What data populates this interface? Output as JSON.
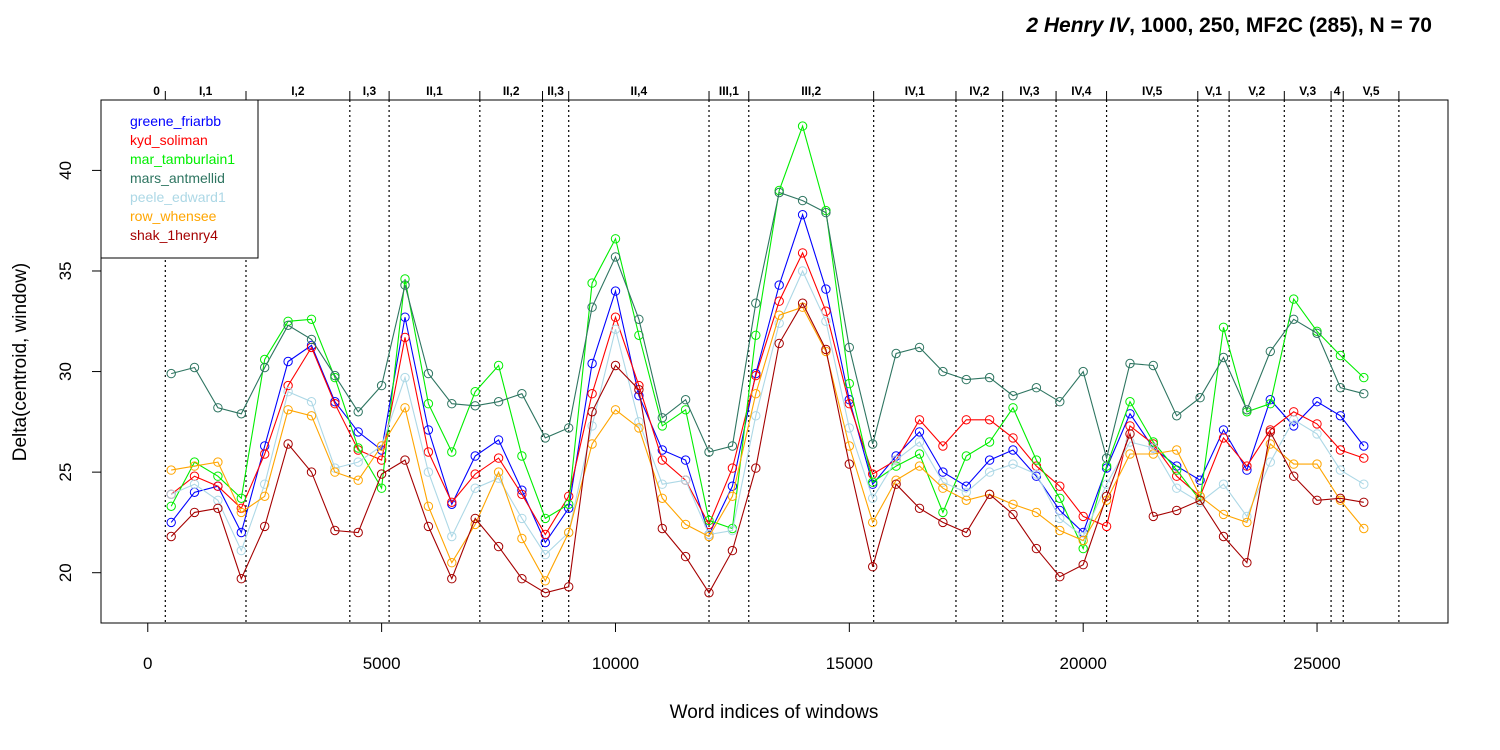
{
  "chart_data": {
    "type": "line",
    "title_italic": "2 Henry IV",
    "title_rest": ", 1000, 250, MF2C (285), N = 70",
    "xlabel": "Word indices of windows",
    "ylabel": "Delta(centroid, window)",
    "xlim": [
      -1000,
      27800
    ],
    "ylim": [
      17.5,
      43.5
    ],
    "xticks": [
      0,
      5000,
      10000,
      15000,
      20000,
      25000
    ],
    "yticks": [
      20,
      25,
      30,
      35,
      40
    ],
    "grid": false,
    "legend_position": "top-left",
    "scenes": [
      {
        "label": "0",
        "start": 0,
        "end": 375
      },
      {
        "label": "I,1",
        "start": 375,
        "end": 2100
      },
      {
        "label": "I,2",
        "start": 2100,
        "end": 4320
      },
      {
        "label": "I,3",
        "start": 4320,
        "end": 5160
      },
      {
        "label": "II,1",
        "start": 5160,
        "end": 7100
      },
      {
        "label": "II,2",
        "start": 7100,
        "end": 8440
      },
      {
        "label": "II,3",
        "start": 8440,
        "end": 9000
      },
      {
        "label": "II,4",
        "start": 9000,
        "end": 12000
      },
      {
        "label": "III,1",
        "start": 12000,
        "end": 12850
      },
      {
        "label": "III,2",
        "start": 12850,
        "end": 15520
      },
      {
        "label": "IV,1",
        "start": 15520,
        "end": 17280
      },
      {
        "label": "IV,2",
        "start": 17280,
        "end": 18280
      },
      {
        "label": "IV,3",
        "start": 18280,
        "end": 19420
      },
      {
        "label": "IV,4",
        "start": 19420,
        "end": 20500
      },
      {
        "label": "IV,5",
        "start": 20500,
        "end": 22450
      },
      {
        "label": "V,1",
        "start": 22450,
        "end": 23120
      },
      {
        "label": "V,2",
        "start": 23120,
        "end": 24300
      },
      {
        "label": "V,3",
        "start": 24300,
        "end": 25300
      },
      {
        "label": "4",
        "start": 25300,
        "end": 25560
      },
      {
        "label": "V,5",
        "start": 25560,
        "end": 26750
      }
    ],
    "scene_boundaries": [
      375,
      2100,
      4320,
      5160,
      7100,
      8440,
      9000,
      12000,
      12850,
      15520,
      17280,
      18280,
      19420,
      20500,
      22450,
      23120,
      24300,
      25300,
      25560,
      26750
    ],
    "series": [
      {
        "name": "greene_friarbb",
        "color": "#0000ff",
        "x": [
          500,
          1000,
          1500,
          2000,
          2500,
          3000,
          3500,
          4000,
          4500,
          5000,
          5500,
          6000,
          6500,
          7000,
          7500,
          8000,
          8500,
          9000,
          9500,
          10000,
          10500,
          11000,
          11500,
          12000,
          12500,
          13000,
          13500,
          14000,
          14500,
          15000,
          15500,
          16000,
          16500,
          17000,
          17500,
          18000,
          18500,
          19000,
          19500,
          20000,
          20500,
          21000,
          21500,
          22000,
          22500,
          23000,
          23500,
          24000,
          24500,
          25000,
          25500,
          26000
        ],
        "y": [
          22.5,
          24.0,
          24.3,
          22.0,
          26.3,
          30.5,
          31.3,
          28.5,
          27.0,
          26.1,
          32.7,
          27.1,
          23.4,
          25.8,
          26.6,
          24.1,
          21.5,
          23.2,
          30.4,
          34.0,
          28.8,
          26.1,
          25.6,
          21.9,
          24.3,
          29.9,
          34.3,
          37.8,
          34.1,
          28.6,
          24.4,
          25.8,
          27.0,
          25.0,
          24.3,
          25.6,
          26.1,
          24.8,
          23.1,
          22.0,
          25.2,
          27.9,
          26.2,
          25.3,
          24.6,
          27.1,
          25.1,
          28.6,
          27.3,
          28.5,
          27.8,
          26.3
        ]
      },
      {
        "name": "kyd_soliman",
        "color": "#ff0000",
        "x": [
          500,
          1000,
          1500,
          2000,
          2500,
          3000,
          3500,
          4000,
          4500,
          5000,
          5500,
          6000,
          6500,
          7000,
          7500,
          8000,
          8500,
          9000,
          9500,
          10000,
          10500,
          11000,
          11500,
          12000,
          12500,
          13000,
          13500,
          14000,
          14500,
          15000,
          15500,
          16000,
          16500,
          17000,
          17500,
          18000,
          18500,
          19000,
          19500,
          20000,
          20500,
          21000,
          21500,
          22000,
          22500,
          23000,
          23500,
          24000,
          24500,
          25000,
          25500,
          26000
        ],
        "y": [
          23.9,
          24.8,
          24.3,
          23.2,
          25.9,
          29.3,
          31.2,
          28.4,
          26.1,
          25.6,
          31.7,
          26.0,
          23.5,
          24.9,
          25.7,
          23.9,
          21.9,
          23.8,
          28.9,
          32.7,
          29.3,
          25.6,
          24.6,
          22.4,
          25.2,
          29.8,
          33.5,
          35.9,
          33.0,
          28.4,
          24.9,
          25.6,
          27.6,
          26.3,
          27.6,
          27.6,
          26.7,
          25.3,
          24.3,
          22.8,
          22.3,
          27.3,
          26.4,
          24.8,
          23.8,
          26.7,
          25.3,
          27.1,
          28.0,
          27.4,
          26.1,
          25.7
        ]
      },
      {
        "name": "mar_tamburlain1",
        "color": "#00ee00",
        "x": [
          500,
          1000,
          1500,
          2000,
          2500,
          3000,
          3500,
          4000,
          4500,
          5000,
          5500,
          6000,
          6500,
          7000,
          7500,
          8000,
          8500,
          9000,
          9500,
          10000,
          10500,
          11000,
          11500,
          12000,
          12500,
          13000,
          13500,
          14000,
          14500,
          15000,
          15500,
          16000,
          16500,
          17000,
          17500,
          18000,
          18500,
          19000,
          19500,
          20000,
          20500,
          21000,
          21500,
          22000,
          22500,
          23000,
          23500,
          24000,
          24500,
          25000,
          25500,
          26000
        ],
        "y": [
          23.3,
          25.5,
          24.8,
          23.7,
          30.6,
          32.5,
          32.6,
          29.7,
          26.2,
          24.2,
          34.6,
          28.4,
          26.0,
          29.0,
          30.3,
          25.8,
          22.7,
          23.4,
          34.4,
          36.6,
          31.8,
          27.3,
          28.1,
          22.6,
          22.2,
          31.8,
          39.0,
          42.2,
          38.0,
          29.4,
          24.5,
          25.3,
          25.9,
          23.0,
          25.8,
          26.5,
          28.2,
          25.6,
          23.7,
          21.2,
          25.3,
          28.5,
          26.5,
          25.1,
          23.6,
          32.2,
          28.0,
          28.4,
          33.6,
          32.0,
          30.8,
          29.7
        ]
      },
      {
        "name": "mars_antmellid",
        "color": "#2e7561",
        "x": [
          500,
          1000,
          1500,
          2000,
          2500,
          3000,
          3500,
          4000,
          4500,
          5000,
          5500,
          6000,
          6500,
          7000,
          7500,
          8000,
          8500,
          9000,
          9500,
          10000,
          10500,
          11000,
          11500,
          12000,
          12500,
          13000,
          13500,
          14000,
          14500,
          15000,
          15500,
          16000,
          16500,
          17000,
          17500,
          18000,
          18500,
          19000,
          19500,
          20000,
          20500,
          21000,
          21500,
          22000,
          22500,
          23000,
          23500,
          24000,
          24500,
          25000,
          25500,
          26000
        ],
        "y": [
          29.9,
          30.2,
          28.2,
          27.9,
          30.2,
          32.3,
          31.6,
          29.8,
          28.0,
          29.3,
          34.3,
          29.9,
          28.4,
          28.3,
          28.5,
          28.9,
          26.7,
          27.2,
          33.2,
          35.7,
          32.6,
          27.7,
          28.6,
          26.0,
          26.3,
          33.4,
          38.9,
          38.5,
          37.9,
          31.2,
          26.4,
          30.9,
          31.2,
          30.0,
          29.6,
          29.7,
          28.8,
          29.2,
          28.5,
          30.0,
          25.7,
          30.4,
          30.3,
          27.8,
          28.7,
          30.7,
          28.1,
          31.0,
          32.6,
          31.9,
          29.2,
          28.9
        ]
      },
      {
        "name": "peele_edward1",
        "color": "#add8e6",
        "x": [
          500,
          1000,
          1500,
          2000,
          2500,
          3000,
          3500,
          4000,
          4500,
          5000,
          5500,
          6000,
          6500,
          7000,
          7500,
          8000,
          8500,
          9000,
          9500,
          10000,
          10500,
          11000,
          11500,
          12000,
          12500,
          13000,
          13500,
          14000,
          14500,
          15000,
          15500,
          16000,
          16500,
          17000,
          17500,
          18000,
          18500,
          19000,
          19500,
          20000,
          20500,
          21000,
          21500,
          22000,
          22500,
          23000,
          23500,
          24000,
          24500,
          25000,
          25500,
          26000
        ],
        "y": [
          23.9,
          24.4,
          23.6,
          21.1,
          24.4,
          29.0,
          28.5,
          25.2,
          25.5,
          26.3,
          29.7,
          25.0,
          21.8,
          24.2,
          24.7,
          22.7,
          20.9,
          22.0,
          27.3,
          32.1,
          27.5,
          24.4,
          24.6,
          21.9,
          22.1,
          27.8,
          32.4,
          35.0,
          32.5,
          27.2,
          23.7,
          25.6,
          26.5,
          24.5,
          24.0,
          25.0,
          25.4,
          24.9,
          22.7,
          21.8,
          24.4,
          26.5,
          26.2,
          24.2,
          23.5,
          24.4,
          22.8,
          25.5,
          27.6,
          26.9,
          25.1,
          24.4
        ]
      },
      {
        "name": "row_whensee",
        "color": "#ffa500",
        "x": [
          500,
          1000,
          1500,
          2000,
          2500,
          3000,
          3500,
          4000,
          4500,
          5000,
          5500,
          6000,
          6500,
          7000,
          7500,
          8000,
          8500,
          9000,
          9500,
          10000,
          10500,
          11000,
          11500,
          12000,
          12500,
          13000,
          13500,
          14000,
          14500,
          15000,
          15500,
          16000,
          16500,
          17000,
          17500,
          18000,
          18500,
          19000,
          19500,
          20000,
          20500,
          21000,
          21500,
          22000,
          22500,
          23000,
          23500,
          24000,
          24500,
          25000,
          25500,
          26000
        ],
        "y": [
          25.1,
          25.3,
          25.5,
          23.0,
          23.8,
          28.1,
          27.8,
          25.0,
          24.6,
          26.3,
          28.2,
          23.3,
          20.5,
          22.4,
          25.0,
          21.7,
          19.6,
          22.0,
          26.4,
          28.1,
          27.2,
          23.7,
          22.4,
          21.8,
          23.8,
          28.9,
          32.8,
          33.2,
          31.0,
          26.3,
          22.5,
          24.6,
          25.3,
          24.2,
          23.6,
          23.9,
          23.4,
          23.0,
          22.1,
          21.6,
          23.6,
          25.9,
          25.9,
          26.1,
          23.8,
          22.9,
          22.5,
          26.4,
          25.4,
          25.4,
          23.6,
          22.2
        ]
      },
      {
        "name": "shak_1henry4",
        "color": "#a50000",
        "x": [
          500,
          1000,
          1500,
          2000,
          2500,
          3000,
          3500,
          4000,
          4500,
          5000,
          5500,
          6000,
          6500,
          7000,
          7500,
          8000,
          8500,
          9000,
          9500,
          10000,
          10500,
          11000,
          11500,
          12000,
          12500,
          13000,
          13500,
          14000,
          14500,
          15000,
          15500,
          16000,
          16500,
          17000,
          17500,
          18000,
          18500,
          19000,
          19500,
          20000,
          20500,
          21000,
          21500,
          22000,
          22500,
          23000,
          23500,
          24000,
          24500,
          25000,
          25500,
          26000
        ],
        "y": [
          21.8,
          23.0,
          23.2,
          19.7,
          22.3,
          26.4,
          25.0,
          22.1,
          22.0,
          24.9,
          25.6,
          22.3,
          19.7,
          22.7,
          21.3,
          19.7,
          19.0,
          19.3,
          28.0,
          30.3,
          29.1,
          22.2,
          20.8,
          19.0,
          21.1,
          25.2,
          31.4,
          33.4,
          31.1,
          25.4,
          20.3,
          24.4,
          23.2,
          22.5,
          22.0,
          23.9,
          22.9,
          21.2,
          19.8,
          20.4,
          23.8,
          26.9,
          22.8,
          23.1,
          23.6,
          21.8,
          20.5,
          27.0,
          24.8,
          23.6,
          23.7,
          23.5
        ]
      }
    ]
  }
}
